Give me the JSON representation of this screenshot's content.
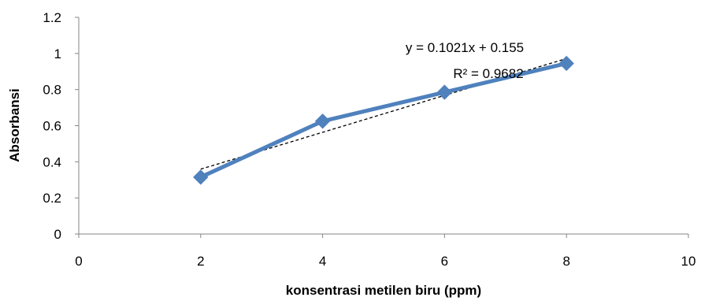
{
  "chart_data": {
    "type": "scatter",
    "title": "",
    "xlabel": "konsentrasi metilen biru (ppm)",
    "ylabel": "Absorbansi",
    "xlim": [
      0,
      10
    ],
    "ylim": [
      0,
      1.2
    ],
    "x_ticks": [
      "0",
      "2",
      "4",
      "6",
      "8",
      "10"
    ],
    "y_ticks": [
      "0",
      "0.2",
      "0.4",
      "0.6",
      "0.8",
      "1",
      "1.2"
    ],
    "grid": false,
    "series": [
      {
        "x": [
          2,
          4,
          6,
          8
        ],
        "y": [
          0.315,
          0.625,
          0.785,
          0.945
        ],
        "color": "#4f81bd",
        "marker": "diamond",
        "line": "solid"
      }
    ],
    "trendline": {
      "slope": 0.1021,
      "intercept": 0.155,
      "x_range": [
        2,
        8
      ],
      "style": "dashed",
      "color": "#000000",
      "equation": "y = 0.1021x + 0.155",
      "r_squared": "R² = 0.9682"
    }
  }
}
